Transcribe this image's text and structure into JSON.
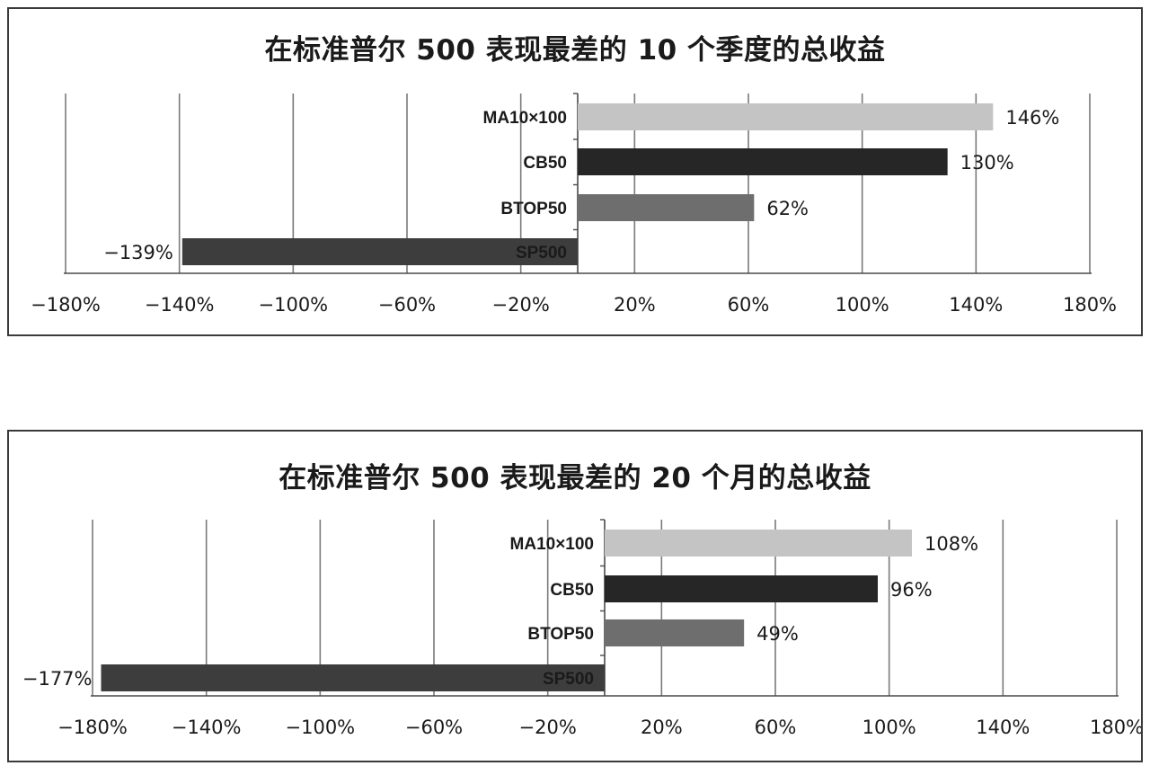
{
  "chart_data": [
    {
      "type": "bar",
      "orientation": "horizontal",
      "title": "在标准普尔 500 表现最差的 10 个季度的总收益",
      "categories": [
        "MA10×100",
        "CB50",
        "BTOP50",
        "SP500"
      ],
      "values": [
        146,
        130,
        62,
        -139
      ],
      "value_labels": [
        "146%",
        "130%",
        "62%",
        "−139%"
      ],
      "bar_colors": [
        "#c4c4c4",
        "#262626",
        "#6e6e6e",
        "#3d3d3d"
      ],
      "xlim": [
        -180,
        180
      ],
      "x_ticks": [
        -180,
        -140,
        -100,
        -60,
        -20,
        20,
        60,
        100,
        140,
        180
      ],
      "x_tick_labels": [
        "−180%",
        "−140%",
        "−100%",
        "−60%",
        "−20%",
        "20%",
        "60%",
        "100%",
        "140%",
        "180%"
      ],
      "grid": true,
      "legend": "none"
    },
    {
      "type": "bar",
      "orientation": "horizontal",
      "title": "在标准普尔 500 表现最差的 20 个月的总收益",
      "categories": [
        "MA10×100",
        "CB50",
        "BTOP50",
        "SP500"
      ],
      "values": [
        108,
        96,
        49,
        -177
      ],
      "value_labels": [
        "108%",
        "96%",
        "49%",
        "−177%"
      ],
      "bar_colors": [
        "#c4c4c4",
        "#262626",
        "#6e6e6e",
        "#3d3d3d"
      ],
      "xlim": [
        -180,
        180
      ],
      "x_ticks": [
        -180,
        -140,
        -100,
        -60,
        -20,
        20,
        60,
        100,
        140,
        180
      ],
      "x_tick_labels": [
        "−180%",
        "−140%",
        "−100%",
        "−60%",
        "−20%",
        "20%",
        "60%",
        "100%",
        "140%",
        "180%"
      ],
      "grid": true,
      "legend": "none"
    }
  ]
}
